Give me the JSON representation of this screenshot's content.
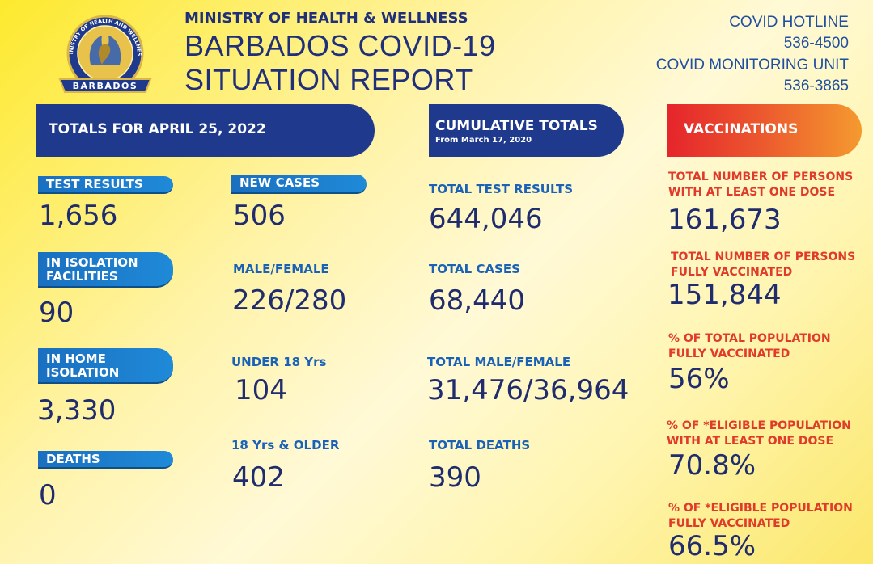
{
  "header": {
    "ministry": "MINISTRY OF HEALTH & WELLNESS",
    "title_line1": "BARBADOS COVID-19",
    "title_line2": "SITUATION REPORT",
    "logo_text": "MINISTRY OF HEALTH AND WELLNESS",
    "logo_country": "BARBADOS"
  },
  "contacts": {
    "hotline_label": "COVID HOTLINE",
    "hotline_number": "536-4500",
    "monitoring_label": "COVID MONITORING UNIT",
    "monitoring_number": "536-3865"
  },
  "banners": {
    "totals": "TOTALS FOR APRIL 25, 2022",
    "cumulative": "CUMULATIVE TOTALS",
    "cumulative_sub": "From March 17, 2020",
    "vaccinations": "VACCINATIONS"
  },
  "daily_left": {
    "test_results_label": "TEST RESULTS",
    "test_results": "1,656",
    "isolation_facilities_label_1": "IN ISOLATION",
    "isolation_facilities_label_2": "FACILITIES",
    "isolation_facilities": "90",
    "home_isolation_label_1": "IN HOME",
    "home_isolation_label_2": "ISOLATION",
    "home_isolation": "3,330",
    "deaths_label": "DEATHS",
    "deaths": "0"
  },
  "daily_mid": {
    "new_cases_label": "NEW CASES",
    "new_cases": "506",
    "male_female_label": "MALE/FEMALE",
    "male_female": "226/280",
    "under18_label": "UNDER 18 Yrs",
    "under18": "104",
    "over18_label": "18 Yrs & OLDER",
    "over18": "402"
  },
  "cumulative": {
    "tests_label": "TOTAL TEST RESULTS",
    "tests": "644,046",
    "cases_label": "TOTAL CASES",
    "cases": "68,440",
    "male_female_label": "TOTAL MALE/FEMALE",
    "male_female": "31,476/36,964",
    "deaths_label": "TOTAL DEATHS",
    "deaths": "390"
  },
  "vaccinations": {
    "one_dose_label_1": "TOTAL NUMBER OF PERSONS",
    "one_dose_label_2": "WITH AT LEAST ONE DOSE",
    "one_dose": "161,673",
    "fully_label_1": "TOTAL NUMBER OF PERSONS",
    "fully_label_2": "FULLY VACCINATED",
    "fully": "151,844",
    "pct_total_label_1": "% OF TOTAL POPULATION",
    "pct_total_label_2": "FULLY VACCINATED",
    "pct_total": "56%",
    "pct_eligible_one_label_1": "% OF *ELIGIBLE POPULATION",
    "pct_eligible_one_label_2": "WITH AT LEAST ONE DOSE",
    "pct_eligible_one": "70.8%",
    "pct_eligible_full_label_1": "% OF *ELIGIBLE POPULATION",
    "pct_eligible_full_label_2": "FULLY VACCINATED",
    "pct_eligible_full": "66.5%"
  },
  "colors": {
    "navy": "#1f3a8c",
    "label_blue": "#1a62b8",
    "label_red": "#e03a2a",
    "number_navy": "#1f2c6e"
  }
}
